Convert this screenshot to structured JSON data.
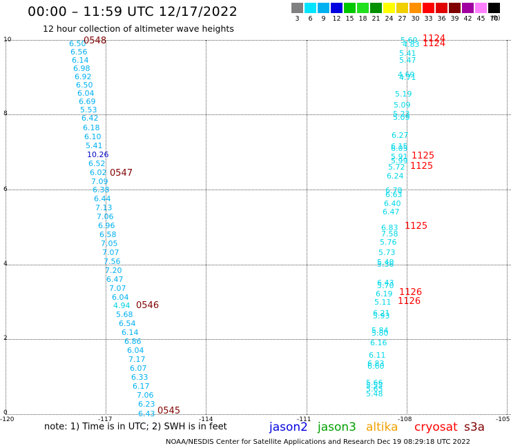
{
  "title": "00:00  –  11:59 UTC 12/17/2022",
  "subtitle": "12 hour collection of altimeter wave heights",
  "scale": {
    "labels": [
      "3",
      "6",
      "9",
      "12",
      "15",
      "18",
      "21",
      "24",
      "27",
      "30",
      "33",
      "36",
      "39",
      "42",
      "45",
      "70"
    ],
    "colors": [
      "#808080",
      "#00e5ff",
      "#00b0f0",
      "#0000e0",
      "#00c800",
      "#20e020",
      "#009000",
      "#ffff00",
      "#f0d000",
      "#ff9000",
      "#ff0000",
      "#e00000",
      "#800000",
      "#a000a0",
      "#ff80ff",
      "#000000"
    ],
    "unit": "(ft)"
  },
  "axes": {
    "y_ticks": [
      "10",
      "8",
      "6",
      "4",
      "2",
      "0"
    ],
    "x_ticks": [
      "-120",
      "-117",
      "-114",
      "-111",
      "-108",
      "-105"
    ]
  },
  "tracks": [
    {
      "color": "#00b0f0",
      "points": [
        [
          "6.50",
          100,
          58
        ],
        [
          "6.56",
          102,
          70
        ],
        [
          "6.14",
          104,
          82
        ],
        [
          "6.98",
          106,
          94
        ],
        [
          "6.92",
          108,
          106
        ],
        [
          "6.50",
          110,
          118
        ],
        [
          "6.04",
          112,
          130
        ],
        [
          "6.69",
          114,
          142
        ],
        [
          "5.53",
          116,
          154
        ],
        [
          "6.42",
          118,
          166
        ],
        [
          "6.18",
          120,
          180
        ],
        [
          "6.10",
          122,
          193
        ],
        [
          "5.41",
          124,
          206
        ],
        [
          "10.26",
          126,
          219
        ],
        [
          "6.52",
          128,
          232
        ],
        [
          "6.02",
          130,
          245
        ],
        [
          "7.09",
          132,
          258
        ],
        [
          "6.38",
          134,
          270
        ],
        [
          "6.44",
          136,
          283
        ],
        [
          "7.13",
          138,
          296
        ],
        [
          "7.06",
          140,
          309
        ],
        [
          "6.96",
          142,
          322
        ],
        [
          "6.58",
          144,
          335
        ],
        [
          "7.05",
          146,
          348
        ],
        [
          "7.07",
          148,
          361
        ],
        [
          "7.56",
          150,
          374
        ],
        [
          "7.20",
          152,
          387
        ],
        [
          "6.47",
          154,
          400
        ],
        [
          "7.07",
          158,
          413
        ],
        [
          "6.04",
          162,
          426
        ],
        [
          "4.94",
          164,
          438
        ],
        [
          "5.68",
          168,
          451
        ],
        [
          "6.54",
          172,
          464
        ],
        [
          "6.14",
          176,
          477
        ],
        [
          "6.86",
          180,
          490
        ],
        [
          "6.04",
          184,
          503
        ],
        [
          "7.17",
          186,
          516
        ],
        [
          "6.07",
          188,
          529
        ],
        [
          "6.33",
          190,
          542
        ],
        [
          "6.17",
          192,
          555
        ],
        [
          "7.06",
          198,
          568
        ],
        [
          "6.23",
          200,
          581
        ],
        [
          "6.43",
          200,
          595
        ]
      ],
      "special": {
        "10.26": "#0000c8",
        "4.94": "#00d0e0"
      }
    },
    {
      "color": "#00d8e8",
      "points": [
        [
          "5.60",
          580,
          53
        ],
        [
          "4.83",
          583,
          59
        ],
        [
          "5.41",
          578,
          72
        ],
        [
          "5.47",
          578,
          82
        ],
        [
          "4.69",
          576,
          103
        ],
        [
          "4.71",
          578,
          107
        ],
        [
          "5.19",
          572,
          131
        ],
        [
          "5.09",
          570,
          147
        ],
        [
          "5.23",
          569,
          160
        ],
        [
          "5.09",
          569,
          165
        ],
        [
          "6.27",
          567,
          191
        ],
        [
          "6.15",
          566,
          207
        ],
        [
          "6.05",
          566,
          210
        ],
        [
          "5.91",
          566,
          222
        ],
        [
          "5.99",
          566,
          228
        ],
        [
          "5.72",
          562,
          237
        ],
        [
          "6.24",
          560,
          250
        ],
        [
          "6.78",
          558,
          271
        ],
        [
          "6.63",
          558,
          277
        ],
        [
          "6.40",
          556,
          290
        ],
        [
          "6.47",
          554,
          302
        ],
        [
          "6.83",
          552,
          325
        ],
        [
          "7.58",
          552,
          334
        ],
        [
          "5.76",
          550,
          346
        ],
        [
          "5.73",
          548,
          361
        ],
        [
          "5.40",
          546,
          375
        ],
        [
          "5.36",
          546,
          378
        ],
        [
          "6.43",
          546,
          405
        ],
        [
          "5.70",
          546,
          409
        ],
        [
          "6.19",
          544,
          421
        ],
        [
          "5.11",
          542,
          433
        ],
        [
          "6.21",
          540,
          449
        ],
        [
          "5.93",
          540,
          453
        ],
        [
          "5.84",
          538,
          474
        ],
        [
          "5.80",
          538,
          478
        ],
        [
          "6.16",
          536,
          492
        ],
        [
          "6.11",
          534,
          510
        ],
        [
          "6.83",
          532,
          522
        ],
        [
          "6.60",
          532,
          526
        ],
        [
          "5.66",
          530,
          550
        ],
        [
          "5.53",
          530,
          554
        ],
        [
          "5.65",
          530,
          559
        ],
        [
          "5.48",
          530,
          566
        ]
      ]
    }
  ],
  "time_labels": [
    {
      "text": "0548",
      "color": "#800000",
      "x": 121,
      "y": 53
    },
    {
      "text": "0547",
      "color": "#800000",
      "x": 159,
      "y": 245
    },
    {
      "text": "0546",
      "color": "#800000",
      "x": 197,
      "y": 437
    },
    {
      "text": "0545",
      "color": "#800000",
      "x": 228,
      "y": 590
    },
    {
      "text": "1124",
      "color": "#ff0000",
      "x": 612,
      "y": 50
    },
    {
      "text": "1124",
      "color": "#ff0000",
      "x": 612,
      "y": 57
    },
    {
      "text": "1125",
      "color": "#ff0000",
      "x": 596,
      "y": 220
    },
    {
      "text": "1125",
      "color": "#ff0000",
      "x": 594,
      "y": 235
    },
    {
      "text": "1125",
      "color": "#ff0000",
      "x": 586,
      "y": 322
    },
    {
      "text": "1126",
      "color": "#ff0000",
      "x": 578,
      "y": 418
    },
    {
      "text": "1126",
      "color": "#ff0000",
      "x": 576,
      "y": 431
    }
  ],
  "note": "note:  1) Time is in UTC;  2) SWH is in feet",
  "satellites": [
    {
      "name": "jason2",
      "color": "#0000e0"
    },
    {
      "name": "jason3",
      "color": "#00a000"
    },
    {
      "name": "altika",
      "color": "#f0a000"
    },
    {
      "name": "cryosat",
      "color": "#ff0000"
    },
    {
      "name": "s3a",
      "color": "#800000"
    }
  ],
  "footer": "NOAA/NESDIS Center for Satellite Applications and Research    Dec 19 08:29:18 UTC 2022"
}
